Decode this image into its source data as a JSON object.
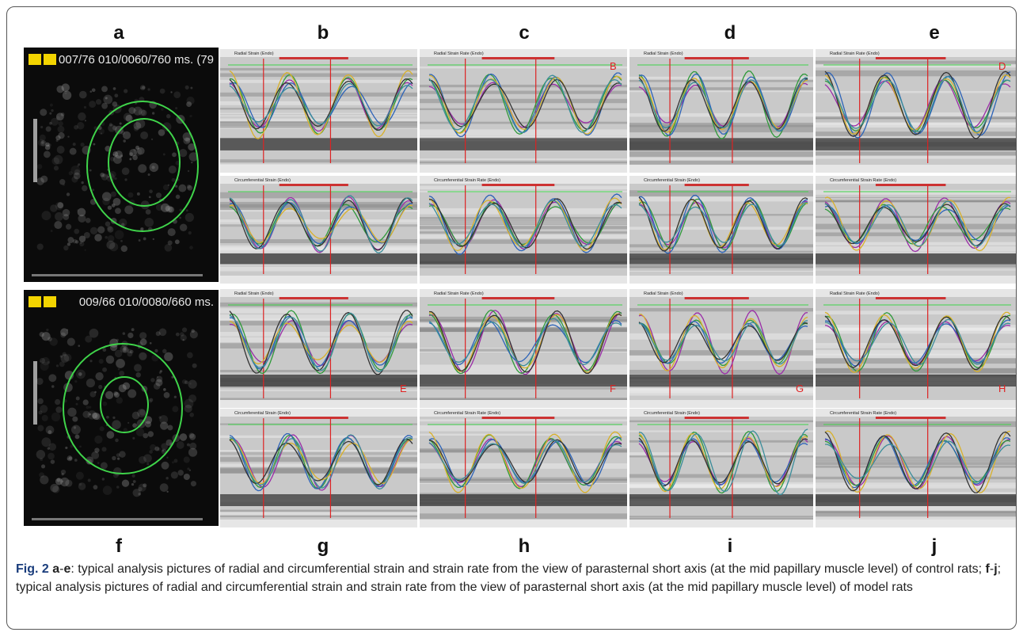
{
  "panel_letters": {
    "top": [
      "a",
      "b",
      "c",
      "d",
      "e"
    ],
    "bottom": [
      "f",
      "g",
      "h",
      "i",
      "j"
    ]
  },
  "echo_panels": [
    {
      "header": "007/76 010/0060/760 ms. (79"
    },
    {
      "header": "009/66 010/0080/660 ms."
    }
  ],
  "plots": [
    {
      "title": "Radial Strain (Endo)"
    },
    {
      "title": "Radial Strain Rate (Endo)",
      "marker": "B"
    },
    {
      "title": "Radial Strain (Endo)"
    },
    {
      "title": "Radial Strain Rate (Endo)",
      "marker": "D"
    },
    {
      "title": "Circumferential Strain (Endo)"
    },
    {
      "title": "Circumferential Strain Rate (Endo)"
    },
    {
      "title": "Circumferential Strain (Endo)"
    },
    {
      "title": "Circumferential Strain Rate (Endo)"
    },
    {
      "title": "Radial Strain (Endo)",
      "marker": "E"
    },
    {
      "title": "Radial Strain Rate (Endo)",
      "marker": "F"
    },
    {
      "title": "Radial Strain (Endo)",
      "marker": "G"
    },
    {
      "title": "Radial Strain Rate (Endo)",
      "marker": "H"
    },
    {
      "title": "Circumferential Strain (Endo)"
    },
    {
      "title": "Circumferential Strain Rate (Endo)"
    },
    {
      "title": "Circumferential Strain (Endo)"
    },
    {
      "title": "Circumferential Strain Rate (Endo)"
    }
  ],
  "caption": {
    "label": "Fig. 2",
    "range1_start": "a",
    "dash": "-",
    "range1_end": "e",
    "text1": ": typical analysis pictures of radial and circumferential strain and strain rate from the view of parasternal short axis (at the mid papillary muscle level) of control rats; ",
    "range2_start": "f",
    "range2_end": "j",
    "text2": "; typical analysis pictures of radial and circumferential strain and strain rate from the view of parasternal short axis (at the mid papillary muscle level) of model rats"
  }
}
